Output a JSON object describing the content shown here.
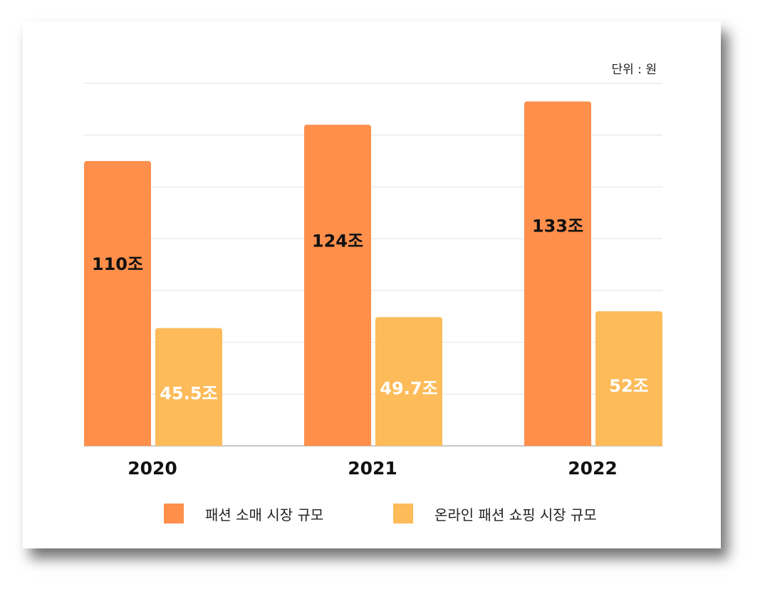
{
  "chart_data": {
    "type": "bar",
    "unit_label": "단위 : 원",
    "categories": [
      "2020",
      "2021",
      "2022"
    ],
    "series": [
      {
        "name": "패션 소매 시장 규모",
        "values": [
          110,
          124,
          133
        ],
        "labels": [
          "110조",
          "124조",
          "133조"
        ],
        "color": "#FF8F4B",
        "label_color": "#111111"
      },
      {
        "name": "온라인 패션 쇼핑 시장 규모",
        "values": [
          45.5,
          49.7,
          52
        ],
        "labels": [
          "45.5조",
          "49.7조",
          "52조"
        ],
        "color": "#FDBB5A",
        "label_color": "#ffffff"
      }
    ],
    "ylim": [
      0,
      140
    ],
    "grid": true,
    "legend_position": "bottom"
  }
}
